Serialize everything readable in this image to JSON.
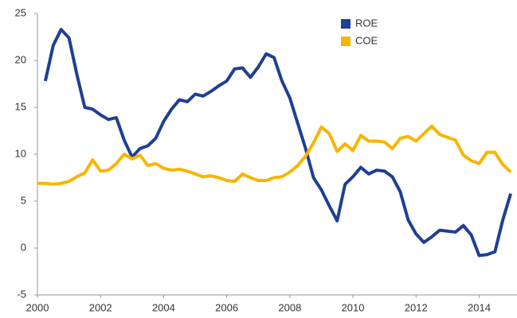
{
  "chart_data": {
    "type": "line",
    "x": [
      2000,
      2000.25,
      2000.5,
      2000.75,
      2001,
      2001.25,
      2001.5,
      2001.75,
      2002,
      2002.25,
      2002.5,
      2002.75,
      2003,
      2003.25,
      2003.5,
      2003.75,
      2004,
      2004.25,
      2004.5,
      2004.75,
      2005,
      2005.25,
      2005.5,
      2005.75,
      2006,
      2006.25,
      2006.5,
      2006.75,
      2007,
      2007.25,
      2007.5,
      2007.75,
      2008,
      2008.25,
      2008.5,
      2008.75,
      2009,
      2009.25,
      2009.5,
      2009.75,
      2010,
      2010.25,
      2010.5,
      2010.75,
      2011,
      2011.25,
      2011.5,
      2011.75,
      2012,
      2012.25,
      2012.5,
      2012.75,
      2013,
      2013.25,
      2013.5,
      2013.75,
      2014,
      2014.25,
      2014.5,
      2014.75,
      2015
    ],
    "series": [
      {
        "name": "ROE",
        "color": "#1f3f94",
        "values": [
          null,
          17.8,
          21.6,
          23.3,
          22.4,
          18.5,
          15.0,
          14.8,
          14.2,
          13.7,
          13.9,
          11.5,
          9.7,
          10.6,
          10.9,
          11.7,
          13.5,
          14.8,
          15.8,
          15.6,
          16.4,
          16.2,
          16.7,
          17.3,
          17.8,
          19.1,
          19.2,
          18.2,
          19.3,
          20.7,
          20.3,
          17.8,
          16.0,
          13.3,
          10.6,
          7.5,
          6.2,
          4.5,
          2.9,
          6.8,
          7.6,
          8.6,
          7.9,
          8.3,
          8.2,
          7.6,
          6.0,
          3.0,
          1.5,
          0.6,
          1.2,
          1.9,
          1.8,
          1.7,
          2.4,
          1.4,
          -0.8,
          -0.7,
          -0.4,
          3.0,
          5.8
        ]
      },
      {
        "name": "COE",
        "color": "#f7b500",
        "values": [
          6.9,
          6.9,
          6.8,
          6.9,
          7.1,
          7.6,
          8.0,
          9.4,
          8.2,
          8.3,
          9.0,
          10.0,
          9.5,
          9.9,
          8.8,
          9.0,
          8.5,
          8.3,
          8.4,
          8.2,
          7.9,
          7.6,
          7.7,
          7.5,
          7.2,
          7.1,
          7.9,
          7.5,
          7.2,
          7.2,
          7.5,
          7.6,
          8.1,
          8.8,
          9.8,
          11.2,
          12.9,
          12.2,
          10.3,
          11.1,
          10.4,
          12.0,
          11.4,
          11.4,
          11.3,
          10.6,
          11.7,
          11.9,
          11.4,
          12.2,
          13.0,
          12.1,
          11.8,
          11.5,
          9.9,
          9.3,
          9.0,
          10.2,
          10.2,
          8.9,
          8.1
        ]
      }
    ],
    "xlim": [
      2000,
      2015.2
    ],
    "xticks": [
      2000,
      2002,
      2004,
      2006,
      2008,
      2010,
      2012,
      2014
    ],
    "ylim": [
      -5,
      25
    ],
    "yticks": [
      -5,
      0,
      5,
      10,
      15,
      20,
      25
    ],
    "grid": false,
    "legend": "upper center"
  }
}
